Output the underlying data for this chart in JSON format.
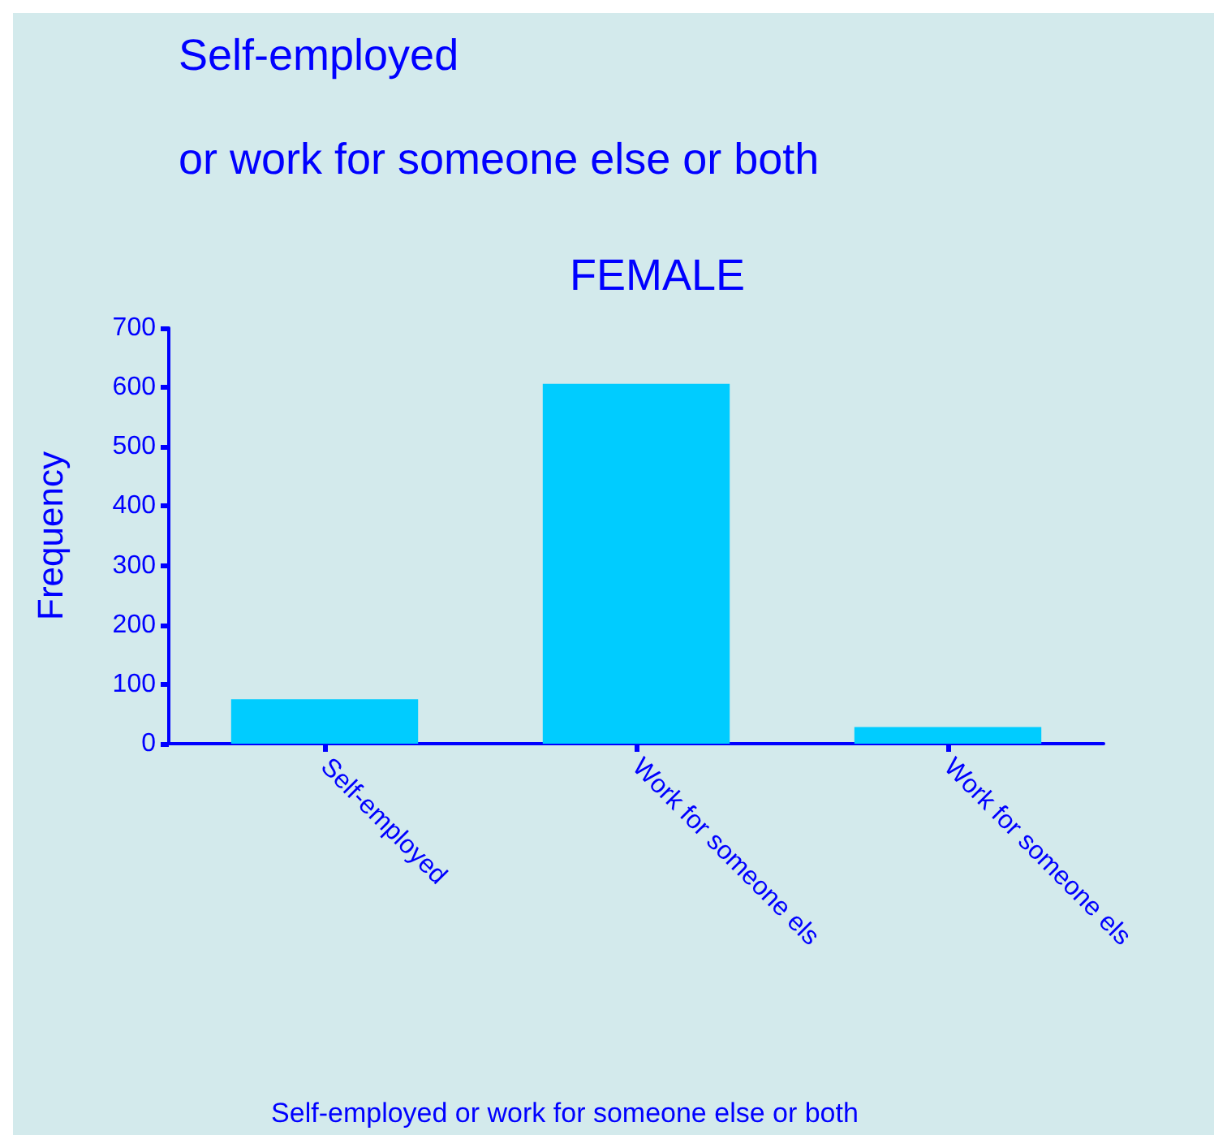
{
  "chart_data": {
    "type": "bar",
    "title": "Self-employed\n\nor work for someone else or both",
    "subtitle": "FEMALE",
    "xlabel": "Self-employed or work for someone else or both",
    "ylabel": "Frequency",
    "categories": [
      "Self-employed",
      "Work for someone els",
      "Work for someone els"
    ],
    "values": [
      75,
      606,
      28
    ],
    "color": "#00ccff",
    "ylim": [
      0,
      700
    ],
    "yticks": [
      0,
      100,
      200,
      300,
      400,
      500,
      600,
      700
    ],
    "grid": false
  }
}
